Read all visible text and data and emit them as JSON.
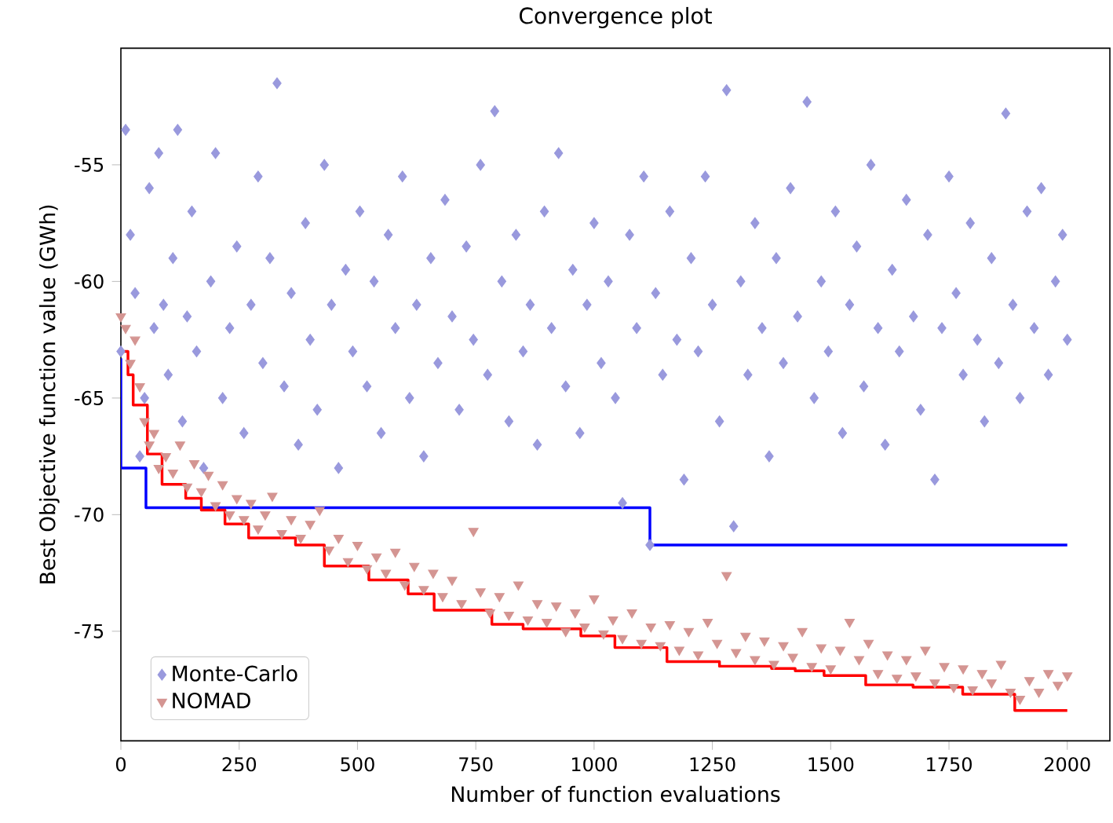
{
  "chart_data": {
    "type": "scatter",
    "title": "Convergence plot",
    "xlabel": "Number of function evaluations",
    "ylabel": "Best Objective function value (GWh)",
    "xlim": [
      0,
      2090
    ],
    "ylim": [
      -79.7,
      -50
    ],
    "xticks": [
      0,
      250,
      500,
      750,
      1000,
      1250,
      1500,
      1750,
      2000
    ],
    "yticks": [
      -75,
      -70,
      -65,
      -60,
      -55
    ],
    "grid": false,
    "legend": "bottom left",
    "series": [
      {
        "name": "Monte-Carlo",
        "marker": "diamond",
        "color": "#9999dd",
        "x": [
          0,
          10,
          20,
          30,
          40,
          50,
          60,
          70,
          80,
          90,
          100,
          110,
          120,
          130,
          140,
          150,
          160,
          175,
          190,
          200,
          215,
          230,
          245,
          260,
          275,
          290,
          300,
          315,
          330,
          345,
          360,
          375,
          390,
          400,
          415,
          430,
          445,
          460,
          475,
          490,
          505,
          520,
          535,
          550,
          565,
          580,
          595,
          610,
          625,
          640,
          655,
          670,
          685,
          700,
          715,
          730,
          745,
          760,
          775,
          790,
          805,
          820,
          835,
          850,
          865,
          880,
          895,
          910,
          925,
          940,
          955,
          970,
          985,
          1000,
          1015,
          1030,
          1045,
          1060,
          1075,
          1090,
          1105,
          1118,
          1130,
          1145,
          1160,
          1175,
          1190,
          1205,
          1220,
          1235,
          1250,
          1265,
          1280,
          1295,
          1310,
          1325,
          1340,
          1355,
          1370,
          1385,
          1400,
          1415,
          1430,
          1450,
          1465,
          1480,
          1495,
          1510,
          1525,
          1540,
          1555,
          1570,
          1585,
          1600,
          1615,
          1630,
          1645,
          1660,
          1675,
          1690,
          1705,
          1720,
          1735,
          1750,
          1765,
          1780,
          1795,
          1810,
          1825,
          1840,
          1855,
          1870,
          1885,
          1900,
          1915,
          1930,
          1945,
          1960,
          1975,
          1990,
          2000
        ],
        "values": [
          -63,
          -53.5,
          -58,
          -60.5,
          -67.5,
          -65,
          -56,
          -62,
          -54.5,
          -61,
          -64,
          -59,
          -53.5,
          -66,
          -61.5,
          -57,
          -63,
          -68,
          -60,
          -54.5,
          -65,
          -62,
          -58.5,
          -66.5,
          -61,
          -55.5,
          -63.5,
          -59,
          -51.5,
          -64.5,
          -60.5,
          -67,
          -57.5,
          -62.5,
          -65.5,
          -55,
          -61,
          -68,
          -59.5,
          -63,
          -57,
          -64.5,
          -60,
          -66.5,
          -58,
          -62,
          -55.5,
          -65,
          -61,
          -67.5,
          -59,
          -63.5,
          -56.5,
          -61.5,
          -65.5,
          -58.5,
          -62.5,
          -55,
          -64,
          -52.7,
          -60,
          -66,
          -58,
          -63,
          -61,
          -67,
          -57,
          -62,
          -54.5,
          -64.5,
          -59.5,
          -66.5,
          -61,
          -57.5,
          -63.5,
          -60,
          -65,
          -69.5,
          -58,
          -62,
          -55.5,
          -71.3,
          -60.5,
          -64,
          -57,
          -62.5,
          -68.5,
          -59,
          -63,
          -55.5,
          -61,
          -66,
          -51.8,
          -70.5,
          -60,
          -64,
          -57.5,
          -62,
          -67.5,
          -59,
          -63.5,
          -56,
          -61.5,
          -52.3,
          -65,
          -60,
          -63,
          -57,
          -66.5,
          -61,
          -58.5,
          -64.5,
          -55,
          -62,
          -67,
          -59.5,
          -63,
          -56.5,
          -61.5,
          -65.5,
          -58,
          -68.5,
          -62,
          -55.5,
          -60.5,
          -64,
          -57.5,
          -62.5,
          -66,
          -59,
          -63.5,
          -52.8,
          -61,
          -65,
          -57,
          -62,
          -56,
          -64,
          -60,
          -58,
          -62.5
        ]
      },
      {
        "name": "NOMAD",
        "marker": "triangle",
        "color": "#d49592",
        "x": [
          0,
          10,
          20,
          30,
          40,
          50,
          60,
          70,
          80,
          95,
          110,
          125,
          140,
          155,
          170,
          185,
          200,
          215,
          230,
          245,
          260,
          275,
          290,
          305,
          320,
          340,
          360,
          380,
          400,
          420,
          440,
          460,
          480,
          500,
          520,
          540,
          560,
          580,
          600,
          620,
          640,
          660,
          680,
          700,
          720,
          745,
          760,
          780,
          800,
          820,
          840,
          860,
          880,
          900,
          920,
          940,
          960,
          980,
          1000,
          1020,
          1040,
          1060,
          1080,
          1100,
          1120,
          1140,
          1160,
          1180,
          1200,
          1220,
          1240,
          1260,
          1280,
          1300,
          1320,
          1340,
          1360,
          1380,
          1400,
          1420,
          1440,
          1460,
          1480,
          1500,
          1520,
          1540,
          1560,
          1580,
          1600,
          1620,
          1640,
          1660,
          1680,
          1700,
          1720,
          1740,
          1760,
          1780,
          1800,
          1820,
          1840,
          1860,
          1880,
          1900,
          1920,
          1940,
          1960,
          1980,
          2000
        ],
        "values": [
          -61.5,
          -62,
          -63.5,
          -62.5,
          -64.5,
          -66,
          -67,
          -66.5,
          -68,
          -67.5,
          -68.2,
          -67,
          -68.8,
          -67.8,
          -69,
          -68.3,
          -69.6,
          -68.7,
          -70,
          -69.3,
          -70.2,
          -69.5,
          -70.6,
          -70,
          -69.2,
          -70.8,
          -70.2,
          -71,
          -70.4,
          -69.8,
          -71.5,
          -71,
          -72,
          -71.3,
          -72.3,
          -71.8,
          -72.5,
          -71.6,
          -73,
          -72.2,
          -73.2,
          -72.5,
          -73.5,
          -72.8,
          -73.8,
          -70.7,
          -73.3,
          -74.2,
          -73.5,
          -74.3,
          -73,
          -74.5,
          -73.8,
          -74.6,
          -73.9,
          -75,
          -74.2,
          -74.8,
          -73.6,
          -75.1,
          -74.5,
          -75.3,
          -74.2,
          -75.5,
          -74.8,
          -75.6,
          -74.7,
          -75.8,
          -75,
          -76,
          -74.6,
          -75.5,
          -72.6,
          -75.9,
          -75.2,
          -76.2,
          -75.4,
          -76.4,
          -75.6,
          -76.1,
          -75,
          -76.5,
          -75.7,
          -76.6,
          -75.8,
          -74.6,
          -76.2,
          -75.5,
          -76.8,
          -76,
          -77,
          -76.2,
          -76.9,
          -75.8,
          -77.2,
          -76.5,
          -77.4,
          -76.6,
          -77.5,
          -76.8,
          -77.2,
          -76.4,
          -77.6,
          -77.9,
          -77.1,
          -77.6,
          -76.8,
          -77.3,
          -76.9
        ]
      },
      {
        "type": "step",
        "color": "#0000ff",
        "x": [
          0,
          0,
          53,
          1118,
          2000
        ],
        "values": [
          -63.3,
          -68.0,
          -69.7,
          -71.3,
          -71.3
        ]
      },
      {
        "type": "step",
        "color": "#ff0000",
        "x": [
          0,
          15,
          26,
          56,
          87,
          137,
          170,
          220,
          270,
          369,
          430,
          524,
          607,
          662,
          784,
          850,
          972,
          1044,
          1154,
          1265,
          1375,
          1425,
          1486,
          1574,
          1674,
          1779,
          1889,
          2000
        ],
        "values": [
          -63.0,
          -64.0,
          -65.3,
          -67.4,
          -68.7,
          -69.3,
          -69.8,
          -70.4,
          -71.0,
          -71.3,
          -72.2,
          -72.8,
          -73.4,
          -74.1,
          -74.7,
          -74.9,
          -75.2,
          -75.7,
          -76.3,
          -76.5,
          -76.6,
          -76.7,
          -76.9,
          -77.3,
          -77.4,
          -77.7,
          -78.4,
          -78.4
        ]
      }
    ]
  }
}
